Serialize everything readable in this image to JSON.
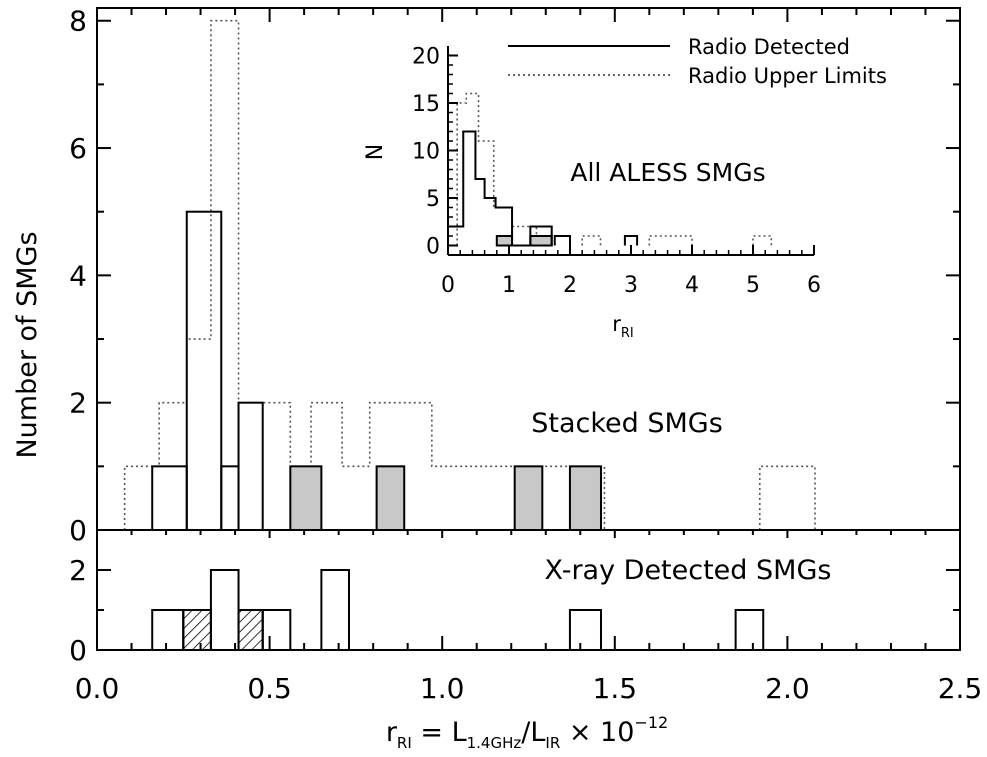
{
  "chart_data": [
    {
      "type": "histogram",
      "panel": "main",
      "annotation": "Stacked SMGs",
      "ylabel": "Number of SMGs",
      "xlim": [
        0.0,
        2.5
      ],
      "ylim": [
        0,
        8.2
      ],
      "yticks": [
        0,
        2,
        4,
        6,
        8
      ],
      "bin_width": 0.1,
      "series": [
        {
          "style": "solid",
          "bins": [
            [
              0.16,
              0.26,
              1
            ],
            [
              0.26,
              0.36,
              5
            ],
            [
              0.36,
              0.41,
              1
            ],
            [
              0.41,
              0.48,
              2
            ]
          ]
        },
        {
          "style": "dotted",
          "bins": [
            [
              0.08,
              0.18,
              1
            ],
            [
              0.18,
              0.26,
              2
            ],
            [
              0.26,
              0.33,
              3
            ],
            [
              0.33,
              0.41,
              8
            ],
            [
              0.41,
              0.56,
              2
            ],
            [
              0.56,
              0.62,
              1
            ],
            [
              0.62,
              0.71,
              2
            ],
            [
              0.71,
              0.79,
              1
            ],
            [
              0.79,
              0.97,
              2
            ],
            [
              0.97,
              1.47,
              1
            ],
            [
              1.92,
              2.08,
              1
            ]
          ]
        },
        {
          "style": "filled-gray",
          "bins": [
            [
              0.56,
              0.65,
              1
            ],
            [
              0.81,
              0.89,
              1
            ],
            [
              1.21,
              1.29,
              1
            ],
            [
              1.37,
              1.46,
              1
            ]
          ]
        }
      ]
    },
    {
      "type": "histogram",
      "panel": "bottom",
      "annotation": "X-ray Detected SMGs",
      "xlabel": "r_RI = L_1.4GHz / L_IR × 10^-12",
      "xlim": [
        0.0,
        2.5
      ],
      "xticks": [
        "0.0",
        "0.5",
        "1.0",
        "1.5",
        "2.0",
        "2.5"
      ],
      "ylim": [
        0,
        3
      ],
      "yticks": [
        0,
        2
      ],
      "series": [
        {
          "style": "solid",
          "bins": [
            [
              0.16,
              0.25,
              1
            ],
            [
              0.25,
              0.33,
              1
            ],
            [
              0.33,
              0.41,
              2
            ],
            [
              0.41,
              0.48,
              1
            ],
            [
              0.48,
              0.56,
              1
            ],
            [
              0.65,
              0.73,
              2
            ],
            [
              1.37,
              1.46,
              1
            ],
            [
              1.85,
              1.93,
              1
            ]
          ]
        },
        {
          "style": "hatched",
          "bins": [
            [
              0.25,
              0.33,
              1
            ],
            [
              0.41,
              0.48,
              1
            ]
          ]
        }
      ]
    },
    {
      "type": "histogram",
      "panel": "inset",
      "annotation": "All ALESS SMGs",
      "xlabel": "r_RI",
      "ylabel": "N",
      "xlim": [
        0,
        6
      ],
      "xticks": [
        "0",
        "1",
        "2",
        "3",
        "4",
        "5",
        "6"
      ],
      "ylim": [
        -1,
        21
      ],
      "yticks": [
        0,
        5,
        10,
        15,
        20
      ],
      "legend": {
        "position": "top-right",
        "entries": [
          "Radio Detected",
          "Radio Upper Limits"
        ]
      },
      "series": [
        {
          "name": "Radio Detected",
          "style": "solid",
          "bins": [
            [
              0.0,
              0.25,
              2
            ],
            [
              0.25,
              0.45,
              12
            ],
            [
              0.45,
              0.6,
              7
            ],
            [
              0.6,
              0.78,
              5
            ],
            [
              0.78,
              1.05,
              4
            ],
            [
              1.05,
              1.35,
              0
            ],
            [
              1.35,
              1.7,
              2
            ],
            [
              1.75,
              2.0,
              1
            ],
            [
              2.9,
              3.1,
              1
            ]
          ]
        },
        {
          "name": "Radio Upper Limits",
          "style": "dotted",
          "bins": [
            [
              0.15,
              0.3,
              15
            ],
            [
              0.3,
              0.5,
              16
            ],
            [
              0.5,
              0.75,
              11
            ],
            [
              0.75,
              1.05,
              4
            ],
            [
              1.05,
              1.45,
              2
            ],
            [
              1.45,
              1.7,
              1
            ],
            [
              2.2,
              2.5,
              1
            ],
            [
              3.3,
              3.6,
              1
            ],
            [
              3.6,
              4.0,
              1
            ],
            [
              5.0,
              5.3,
              1
            ]
          ]
        },
        {
          "style": "filled-gray",
          "bins": [
            [
              0.8,
              1.05,
              1
            ],
            [
              1.35,
              1.7,
              1
            ]
          ]
        }
      ]
    }
  ],
  "labels": {
    "stacked": "Stacked SMGs",
    "xray": "X-ray Detected SMGs",
    "inset": "All ALESS SMGs",
    "ylabel": "Number of SMGs",
    "inset_ylabel": "N",
    "inset_xlabel": "r",
    "inset_xlabel_sub": "RI",
    "legend_detected": "Radio Detected",
    "legend_limits": "Radio Upper Limits",
    "x_r": "r",
    "x_r_sub": "RI",
    "x_eq": " = L",
    "x_sub1": "1.4GHz",
    "x_slash": "/L",
    "x_sub2": "IR",
    "x_times": " × 10",
    "x_exp": "−12"
  }
}
